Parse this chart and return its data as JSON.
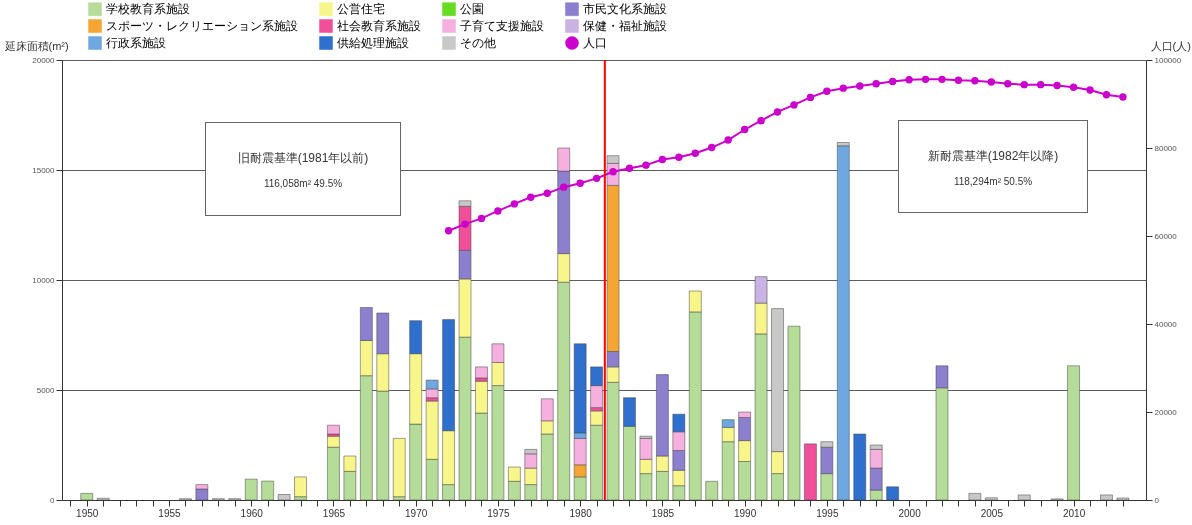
{
  "chart_data": {
    "type": "bar",
    "stacked": true,
    "ylabel": "延床面積(m²)",
    "y2label": "人口(人)",
    "x": [
      1950,
      1951,
      1956,
      1957,
      1958,
      1959,
      1960,
      1961,
      1962,
      1963,
      1965,
      1966,
      1967,
      1968,
      1969,
      1970,
      1971,
      1972,
      1973,
      1974,
      1975,
      1976,
      1977,
      1978,
      1979,
      1980,
      1981,
      1982,
      1983,
      1984,
      1985,
      1986,
      1987,
      1988,
      1989,
      1990,
      1991,
      1992,
      1993,
      1994,
      1995,
      1996,
      1997,
      1998,
      1999,
      2002,
      2004,
      2005,
      2007,
      2009,
      2010,
      2012,
      2013
    ],
    "series": [
      {
        "name": "学校教育系施設",
        "color": "#b5dc98",
        "values": [
          300,
          null,
          null,
          null,
          null,
          null,
          950,
          860,
          null,
          150,
          2400,
          1300,
          5650,
          4950,
          150,
          3450,
          1850,
          700,
          7400,
          3950,
          5200,
          850,
          700,
          3000,
          9900,
          1050,
          3400,
          5350,
          3350,
          1200,
          1300,
          650,
          8550,
          850,
          2650,
          1750,
          7550,
          1200,
          7900,
          null,
          1200,
          null,
          null,
          450,
          null,
          5100,
          null,
          null,
          null,
          null,
          6100,
          null,
          null
        ]
      },
      {
        "name": "公営住宅",
        "color": "#f8f58a",
        "values": [
          null,
          null,
          null,
          null,
          null,
          null,
          null,
          null,
          null,
          900,
          500,
          700,
          1600,
          1700,
          2650,
          3200,
          2650,
          2450,
          2650,
          1450,
          1050,
          650,
          750,
          600,
          1300,
          null,
          650,
          700,
          null,
          650,
          700,
          700,
          950,
          null,
          650,
          950,
          1400,
          1000,
          null,
          null,
          null,
          null,
          null,
          null,
          null,
          null,
          null,
          null,
          null,
          null,
          null,
          null,
          null
        ]
      },
      {
        "name": "公園",
        "color": "#66dd22",
        "values": [
          null,
          null,
          null,
          null,
          null,
          null,
          null,
          null,
          null,
          null,
          null,
          null,
          null,
          null,
          null,
          null,
          null,
          null,
          null,
          null,
          null,
          null,
          null,
          null,
          null,
          null,
          null,
          null,
          null,
          null,
          null,
          null,
          null,
          null,
          null,
          null,
          null,
          null,
          null,
          null,
          null,
          null,
          null,
          null,
          null,
          null,
          null,
          null,
          null,
          null,
          null,
          null,
          null
        ]
      },
      {
        "name": "市民文化系施設",
        "color": "#8b7fce",
        "values": [
          null,
          null,
          null,
          500,
          null,
          null,
          null,
          null,
          null,
          null,
          null,
          null,
          1500,
          1850,
          null,
          null,
          null,
          null,
          1300,
          null,
          null,
          null,
          null,
          null,
          3750,
          null,
          null,
          700,
          null,
          null,
          3700,
          900,
          null,
          null,
          null,
          1050,
          null,
          null,
          null,
          null,
          1200,
          null,
          null,
          1000,
          null,
          1000,
          null,
          null,
          null,
          null,
          null,
          null,
          null
        ]
      },
      {
        "name": "スポーツ・レクリエーション系施設",
        "color": "#f5a533",
        "values": [
          null,
          null,
          null,
          null,
          null,
          null,
          null,
          null,
          null,
          null,
          null,
          null,
          null,
          null,
          null,
          null,
          null,
          null,
          null,
          null,
          null,
          null,
          null,
          null,
          null,
          550,
          null,
          7550,
          null,
          null,
          null,
          null,
          null,
          null,
          null,
          null,
          null,
          null,
          null,
          null,
          null,
          null,
          null,
          null,
          null,
          null,
          null,
          null,
          null,
          null,
          null,
          null,
          null
        ]
      },
      {
        "name": "社会教育系施設",
        "color": "#f0509a",
        "values": [
          null,
          null,
          null,
          null,
          null,
          null,
          null,
          null,
          null,
          null,
          100,
          null,
          null,
          null,
          null,
          null,
          150,
          null,
          2000,
          150,
          null,
          null,
          null,
          null,
          null,
          null,
          150,
          null,
          null,
          null,
          null,
          null,
          null,
          null,
          null,
          null,
          null,
          null,
          null,
          2550,
          null,
          null,
          null,
          null,
          null,
          null,
          null,
          null,
          null,
          null,
          null,
          null,
          null
        ]
      },
      {
        "name": "子育て支援施設",
        "color": "#f5b0e0",
        "values": [
          null,
          null,
          null,
          200,
          null,
          null,
          null,
          null,
          null,
          null,
          400,
          null,
          null,
          null,
          null,
          null,
          400,
          null,
          null,
          500,
          850,
          null,
          650,
          1000,
          1050,
          1200,
          1000,
          1000,
          null,
          950,
          null,
          850,
          null,
          null,
          null,
          250,
          null,
          null,
          null,
          null,
          null,
          null,
          null,
          850,
          null,
          null,
          null,
          null,
          null,
          null,
          null,
          null,
          null
        ]
      },
      {
        "name": "保健・福祉施設",
        "color": "#c9b3e3",
        "values": [
          null,
          null,
          null,
          null,
          null,
          null,
          null,
          null,
          null,
          null,
          null,
          null,
          null,
          null,
          null,
          null,
          null,
          null,
          null,
          null,
          null,
          null,
          null,
          null,
          null,
          null,
          null,
          null,
          null,
          null,
          null,
          null,
          null,
          null,
          null,
          null,
          1200,
          null,
          null,
          null,
          null,
          null,
          null,
          null,
          null,
          null,
          null,
          null,
          null,
          null,
          null,
          null,
          null
        ]
      },
      {
        "name": "行政系施設",
        "color": "#6fa8e0",
        "values": [
          null,
          null,
          null,
          null,
          null,
          null,
          null,
          null,
          null,
          null,
          null,
          null,
          null,
          null,
          null,
          null,
          400,
          null,
          null,
          null,
          null,
          null,
          null,
          null,
          null,
          250,
          null,
          null,
          null,
          null,
          null,
          null,
          null,
          null,
          350,
          null,
          null,
          null,
          null,
          null,
          null,
          16100,
          null,
          null,
          null,
          null,
          null,
          null,
          null,
          null,
          null,
          null,
          null
        ]
      },
      {
        "name": "供給処理施設",
        "color": "#2f6fce",
        "values": [
          null,
          null,
          null,
          null,
          null,
          null,
          null,
          null,
          null,
          null,
          null,
          null,
          null,
          null,
          null,
          1500,
          null,
          5050,
          null,
          null,
          null,
          null,
          null,
          null,
          null,
          4050,
          850,
          null,
          1300,
          null,
          null,
          800,
          null,
          null,
          null,
          null,
          null,
          null,
          null,
          null,
          null,
          null,
          3000,
          null,
          600,
          null,
          null,
          null,
          null,
          null,
          null,
          null,
          null
        ]
      },
      {
        "name": "その他",
        "color": "#c8c8c8",
        "values": [
          null,
          80,
          60,
          null,
          60,
          60,
          null,
          null,
          250,
          null,
          null,
          null,
          null,
          null,
          null,
          null,
          null,
          null,
          250,
          null,
          null,
          null,
          200,
          null,
          null,
          null,
          null,
          350,
          null,
          100,
          null,
          null,
          null,
          null,
          null,
          null,
          null,
          6500,
          null,
          null,
          250,
          150,
          null,
          200,
          null,
          null,
          300,
          100,
          230,
          50,
          null,
          230,
          90
        ]
      },
      {
        "name": "人口",
        "type": "line",
        "axis": "y2",
        "color": "#cc00cc",
        "x": [
          1972,
          1973,
          1974,
          1975,
          1976,
          1977,
          1978,
          1979,
          1980,
          1981,
          1982,
          1983,
          1984,
          1985,
          1986,
          1987,
          1988,
          1989,
          1990,
          1991,
          1992,
          1993,
          1994,
          1995,
          1996,
          1997,
          1998,
          1999,
          2000,
          2001,
          2002,
          2003,
          2004,
          2005,
          2006,
          2007,
          2008,
          2009,
          2010,
          2011,
          2012,
          2013
        ],
        "values": [
          61200,
          62700,
          64000,
          65700,
          67300,
          68800,
          69700,
          71100,
          72000,
          73100,
          74600,
          75400,
          76100,
          77400,
          77900,
          78800,
          80100,
          81800,
          84200,
          86200,
          88200,
          89800,
          91500,
          92900,
          93600,
          94100,
          94600,
          95100,
          95500,
          95600,
          95600,
          95400,
          95300,
          95000,
          94600,
          94400,
          94400,
          94200,
          93800,
          93200,
          92100,
          91600
        ]
      }
    ],
    "xlim": [
      1948.8,
      2014.1
    ],
    "xticks": [
      {
        "value": 1949,
        "label": null
      },
      1950,
      {
        "value": 1951,
        "label": null
      },
      {
        "value": 1952,
        "label": null
      },
      {
        "value": 1953,
        "label": null
      },
      {
        "value": 1954,
        "label": null
      },
      1955,
      {
        "value": 1956,
        "label": null
      },
      {
        "value": 1957,
        "label": null
      },
      {
        "value": 1958,
        "label": null
      },
      {
        "value": 1959,
        "label": null
      },
      1960,
      {
        "value": 1961,
        "label": null
      },
      {
        "value": 1962,
        "label": null
      },
      {
        "value": 1963,
        "label": null
      },
      {
        "value": 1964,
        "label": null
      },
      1965,
      {
        "value": 1966,
        "label": null
      },
      {
        "value": 1967,
        "label": null
      },
      {
        "value": 1968,
        "label": null
      },
      {
        "value": 1969,
        "label": null
      },
      1970,
      {
        "value": 1971,
        "label": null
      },
      {
        "value": 1972,
        "label": null
      },
      {
        "value": 1973,
        "label": null
      },
      {
        "value": 1974,
        "label": null
      },
      1975,
      {
        "value": 1976,
        "label": null
      },
      {
        "value": 1977,
        "label": null
      },
      {
        "value": 1978,
        "label": null
      },
      {
        "value": 1979,
        "label": null
      },
      1980,
      {
        "value": 1981,
        "label": null
      },
      {
        "value": 1982,
        "label": null
      },
      {
        "value": 1983,
        "label": null
      },
      {
        "value": 1984,
        "label": null
      },
      1985,
      {
        "value": 1986,
        "label": null
      },
      {
        "value": 1987,
        "label": null
      },
      {
        "value": 1988,
        "label": null
      },
      {
        "value": 1989,
        "label": null
      },
      1990,
      {
        "value": 1991,
        "label": null
      },
      {
        "value": 1992,
        "label": null
      },
      {
        "value": 1993,
        "label": null
      },
      {
        "value": 1994,
        "label": null
      },
      1995,
      {
        "value": 1996,
        "label": null
      },
      {
        "value": 1997,
        "label": null
      },
      {
        "value": 1998,
        "label": null
      },
      {
        "value": 1999,
        "label": null
      },
      2000,
      {
        "value": 2001,
        "label": null
      },
      {
        "value": 2002,
        "label": null
      },
      {
        "value": 2003,
        "label": null
      },
      {
        "value": 2004,
        "label": null
      },
      2005,
      {
        "value": 2006,
        "label": null
      },
      {
        "value": 2007,
        "label": null
      },
      {
        "value": 2008,
        "label": null
      },
      {
        "value": 2009,
        "label": null
      },
      2010,
      {
        "value": 2011,
        "label": null
      },
      {
        "value": 2012,
        "label": null
      },
      {
        "value": 2013,
        "label": null
      }
    ],
    "ylim": [
      0,
      20000
    ],
    "yticks": [
      0,
      5000,
      10000,
      15000,
      20000
    ],
    "y2lim": [
      0,
      100000
    ],
    "y2ticks": [
      0,
      20000,
      40000,
      60000,
      80000,
      100000
    ],
    "grid": "y",
    "legend": "top",
    "marker": "circle",
    "line_style": "solid",
    "ref_lines": [
      {
        "axis": "x",
        "value": 1981.5,
        "color": "#ff0000"
      }
    ],
    "annotations": [
      "旧耐震基準(1981年以前)",
      "116,058m² 49.5%",
      "新耐震基準(1982年以降)",
      "118,294m² 50.5%"
    ]
  }
}
